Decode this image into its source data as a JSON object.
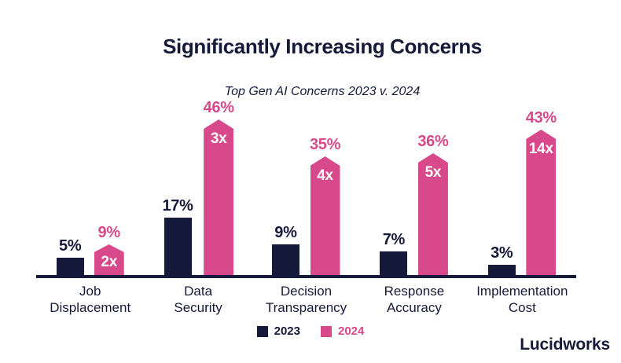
{
  "title": "Significantly Increasing Concerns",
  "subtitle": "Top Gen AI Concerns 2023 v. 2024",
  "brand": {
    "logo_text": "Lucidworks"
  },
  "colors": {
    "navy": "#161A3A",
    "pink": "#D8498C",
    "background": "#FFFFFF",
    "multiplier_text": "#FFFFFF"
  },
  "legend": {
    "items": [
      {
        "label": "2023",
        "color": "#161A3A"
      },
      {
        "label": "2024",
        "color": "#D8498C"
      }
    ]
  },
  "chart_data": {
    "type": "bar",
    "title": "Significantly Increasing Concerns",
    "subtitle": "Top Gen AI Concerns 2023 v. 2024",
    "categories": [
      "Job Displacement",
      "Data Security",
      "Decision Transparency",
      "Response Accuracy",
      "Implementation Cost"
    ],
    "category_label_lines": [
      [
        "Job",
        "Displacement"
      ],
      [
        "Data",
        "Security"
      ],
      [
        "Decision",
        "Transparency"
      ],
      [
        "Response",
        "Accuracy"
      ],
      [
        "Implementation",
        "Cost"
      ]
    ],
    "series": [
      {
        "name": "2023",
        "color": "#161A3A",
        "values": [
          5,
          17,
          9,
          7,
          3
        ],
        "labels": [
          "5%",
          "17%",
          "9%",
          "7%",
          "3%"
        ]
      },
      {
        "name": "2024",
        "color": "#D8498C",
        "values": [
          9,
          46,
          35,
          36,
          43
        ],
        "labels": [
          "9%",
          "46%",
          "35%",
          "36%",
          "43%"
        ]
      }
    ],
    "multiplier_labels": [
      "2x",
      "3x",
      "4x",
      "5x",
      "14x"
    ],
    "unit": "%",
    "value_range": [
      0,
      46
    ],
    "grid": false,
    "axis_style": "baseline-only",
    "legend_position": "bottom-center",
    "bar_shape_2024": "pentagon-pointed-top"
  }
}
